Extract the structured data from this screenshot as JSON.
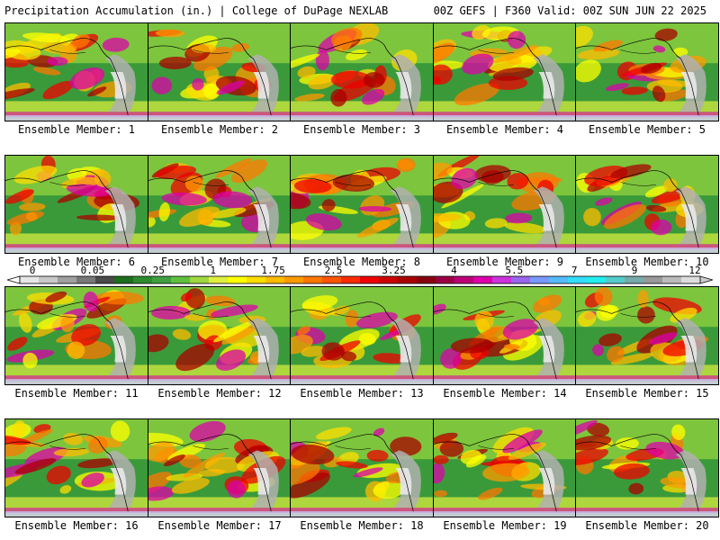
{
  "header": {
    "title_left": "Precipitation Accumulation (in.) | College of DuPage NEXLAB",
    "title_right": "00Z GEFS | F360 Valid: 00Z SUN JUN 22 2025"
  },
  "panels": [
    {
      "label": "Ensemble Member: 1"
    },
    {
      "label": "Ensemble Member: 2"
    },
    {
      "label": "Ensemble Member: 3"
    },
    {
      "label": "Ensemble Member: 4"
    },
    {
      "label": "Ensemble Member: 5"
    },
    {
      "label": "Ensemble Member: 6"
    },
    {
      "label": "Ensemble Member: 7"
    },
    {
      "label": "Ensemble Member: 8"
    },
    {
      "label": "Ensemble Member: 9"
    },
    {
      "label": "Ensemble Member: 10"
    },
    {
      "label": "Ensemble Member: 11"
    },
    {
      "label": "Ensemble Member: 12"
    },
    {
      "label": "Ensemble Member: 13"
    },
    {
      "label": "Ensemble Member: 14"
    },
    {
      "label": "Ensemble Member: 15"
    },
    {
      "label": "Ensemble Member: 16"
    },
    {
      "label": "Ensemble Member: 17"
    },
    {
      "label": "Ensemble Member: 18"
    },
    {
      "label": "Ensemble Member: 19"
    },
    {
      "label": "Ensemble Member: 20"
    }
  ],
  "colorbar": {
    "tick_labels": [
      "0",
      "0.05",
      "0.25",
      "1",
      "1.75",
      "2.5",
      "3.25",
      "4",
      "5.5",
      "7",
      "9",
      "12"
    ],
    "colors": [
      "#e6e6e6",
      "#c8c8c8",
      "#a0a0a0",
      "#787878",
      "#4a4a4a",
      "#1e6e1e",
      "#2f8a2f",
      "#3fa03f",
      "#5fbf3f",
      "#9fd83f",
      "#dfef3f",
      "#ffff00",
      "#ffdd00",
      "#ffbb00",
      "#ff9900",
      "#ff7700",
      "#ff5500",
      "#ff2a00",
      "#ee0000",
      "#cc0000",
      "#aa0000",
      "#880010",
      "#990044",
      "#bb0077",
      "#dd00aa",
      "#cc33dd",
      "#9966ee",
      "#7799ff",
      "#55bbff",
      "#33ddff",
      "#22eeee",
      "#55cccc",
      "#77aaaa",
      "#999999",
      "#bbbbbb",
      "#dddddd"
    ]
  }
}
